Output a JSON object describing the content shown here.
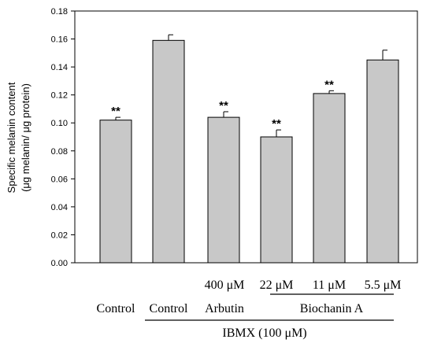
{
  "chart_data": {
    "type": "bar",
    "ylabel_line1": "Specific melanin content",
    "ylabel_line2": "(μg melanin/ μg protein)",
    "ylim": [
      0,
      0.18
    ],
    "yticks": [
      "0.00",
      "0.02",
      "0.04",
      "0.06",
      "0.08",
      "0.10",
      "0.12",
      "0.14",
      "0.16",
      "0.18"
    ],
    "values": [
      0.102,
      0.159,
      0.104,
      0.09,
      0.121,
      0.145
    ],
    "errors": [
      0.002,
      0.004,
      0.004,
      0.005,
      0.002,
      0.007
    ],
    "significance": [
      "**",
      "",
      "**",
      "**",
      "**",
      ""
    ],
    "bar_color": "#c8c8c8",
    "grid": false,
    "labels": {
      "row1": [
        "400 μM",
        "22 μM",
        "11 μM",
        "5.5 μM"
      ],
      "control1": "Control",
      "control2": "Control",
      "arbutin": "Arbutin",
      "biochanin": "Biochanin A",
      "ibmx": "IBMX (100 μM)"
    }
  }
}
